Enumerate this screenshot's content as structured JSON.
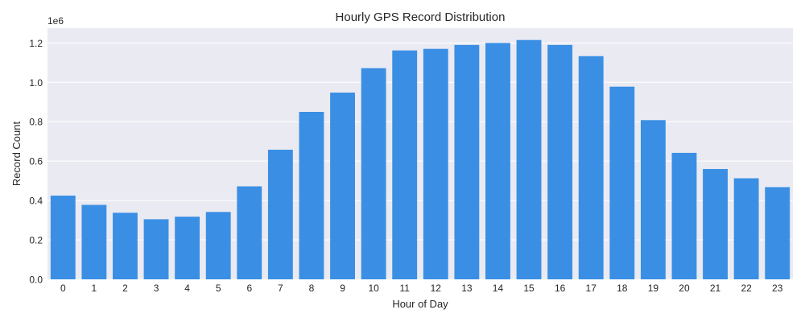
{
  "chart_data": {
    "type": "bar",
    "title": "Hourly GPS Record Distribution",
    "xlabel": "Hour of Day",
    "ylabel": "Record Count",
    "y_multiplier_label": "1e6",
    "categories": [
      "0",
      "1",
      "2",
      "3",
      "4",
      "5",
      "6",
      "7",
      "8",
      "9",
      "10",
      "11",
      "12",
      "13",
      "14",
      "15",
      "16",
      "17",
      "18",
      "19",
      "20",
      "21",
      "22",
      "23"
    ],
    "values": [
      425000,
      378000,
      338000,
      305000,
      318000,
      342000,
      472000,
      658000,
      850000,
      948000,
      1072000,
      1162000,
      1170000,
      1190000,
      1200000,
      1215000,
      1190000,
      1133000,
      978000,
      808000,
      642000,
      560000,
      513000,
      468000
    ],
    "ylim": [
      0,
      1275000
    ],
    "yticks": [
      0,
      200000,
      400000,
      600000,
      800000,
      1000000,
      1200000
    ],
    "ytick_labels": [
      "0.0",
      "0.2",
      "0.4",
      "0.6",
      "0.8",
      "1.0",
      "1.2"
    ],
    "grid": true,
    "bar_color": "#3a8fe4",
    "background_color": "#eaeaf2",
    "grid_color": "#ffffff"
  }
}
